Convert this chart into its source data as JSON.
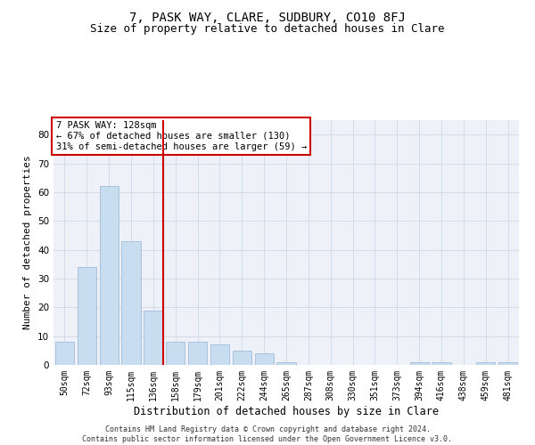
{
  "title": "7, PASK WAY, CLARE, SUDBURY, CO10 8FJ",
  "subtitle": "Size of property relative to detached houses in Clare",
  "xlabel": "Distribution of detached houses by size in Clare",
  "ylabel": "Number of detached properties",
  "categories": [
    "50sqm",
    "72sqm",
    "93sqm",
    "115sqm",
    "136sqm",
    "158sqm",
    "179sqm",
    "201sqm",
    "222sqm",
    "244sqm",
    "265sqm",
    "287sqm",
    "308sqm",
    "330sqm",
    "351sqm",
    "373sqm",
    "394sqm",
    "416sqm",
    "438sqm",
    "459sqm",
    "481sqm"
  ],
  "values": [
    8,
    34,
    62,
    43,
    19,
    8,
    8,
    7,
    5,
    4,
    1,
    0,
    0,
    0,
    0,
    0,
    1,
    1,
    0,
    1,
    1
  ],
  "bar_color": "#c9ddf0",
  "bar_edge_color": "#a0bcd8",
  "vline_pos": 4.43,
  "vline_color": "#cc0000",
  "annotation_text": "7 PASK WAY: 128sqm\n← 67% of detached houses are smaller (130)\n31% of semi-detached houses are larger (59) →",
  "annotation_box_color": "#ffffff",
  "annotation_box_edge": "#cc0000",
  "ylim": [
    0,
    85
  ],
  "yticks": [
    0,
    10,
    20,
    30,
    40,
    50,
    60,
    70,
    80
  ],
  "grid_color": "#d0d8e8",
  "bg_color": "#eef2f8",
  "title_fontsize": 10,
  "subtitle_fontsize": 9,
  "xlabel_fontsize": 8.5,
  "ylabel_fontsize": 8,
  "tick_fontsize": 7,
  "ytick_fontsize": 7.5,
  "footer_text": "Contains HM Land Registry data © Crown copyright and database right 2024.\nContains public sector information licensed under the Open Government Licence v3.0."
}
